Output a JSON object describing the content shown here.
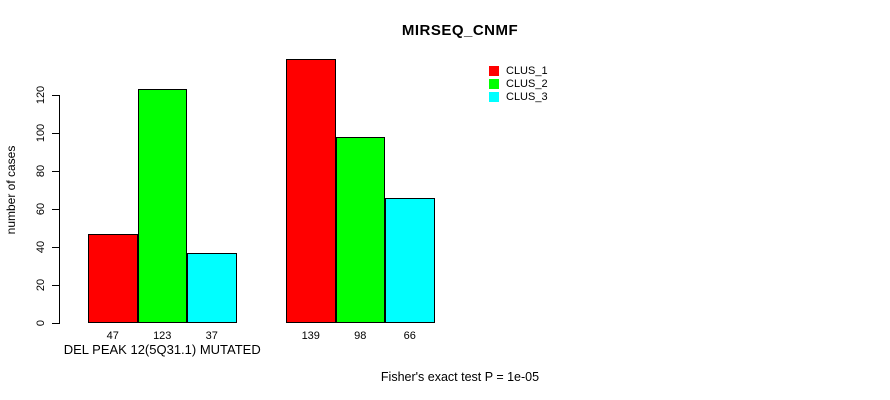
{
  "chart_data": {
    "type": "bar",
    "title": "MIRSEQ_CNMF",
    "ylabel": "number of cases",
    "xlabel": "",
    "ylim": [
      0,
      140
    ],
    "yticks": [
      0,
      20,
      40,
      60,
      80,
      100,
      120
    ],
    "grid": false,
    "legend_position": "top-right",
    "legend": [
      {
        "name": "CLUS_1",
        "color": "#ff0000"
      },
      {
        "name": "CLUS_2",
        "color": "#00ff00"
      },
      {
        "name": "CLUS_3",
        "color": "#00ffff"
      }
    ],
    "groups": [
      {
        "label": "DEL PEAK 12(5Q31.1) MUTATED",
        "values": [
          47,
          123,
          37
        ]
      },
      {
        "label": "",
        "values": [
          139,
          98,
          66
        ]
      }
    ],
    "bar_value_labels_shown": true,
    "annotation": "Fisher's exact test P = 1e-05"
  }
}
